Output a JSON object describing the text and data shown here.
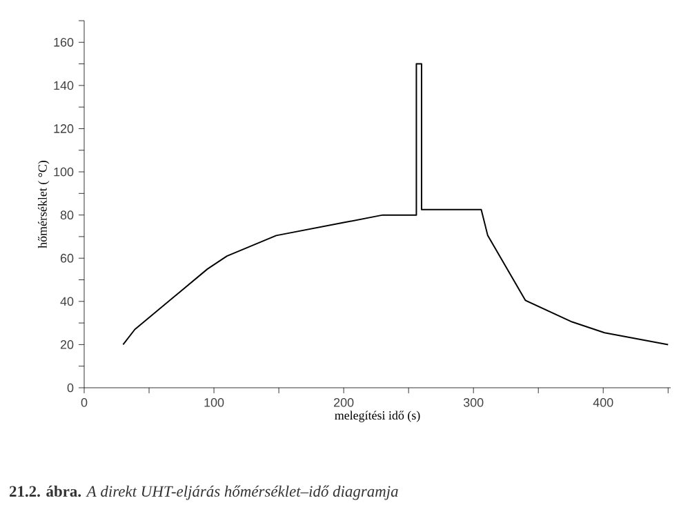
{
  "chart_data": {
    "type": "line",
    "title": "**21.2. ábra.** *A direkt UHT-eljárás hőmérséklet–idő diagramja*",
    "xlabel": "melegítési idő (s)",
    "ylabel": "hőmérséklet ( °C)",
    "x": [
      30,
      39,
      95,
      110,
      148,
      200,
      230,
      256,
      256,
      260,
      260,
      306,
      311,
      340,
      376,
      401,
      450
    ],
    "series": [
      {
        "color": "#000000",
        "values": [
          20,
          27,
          55,
          61,
          70.5,
          76.5,
          80,
          80,
          150,
          150,
          82.5,
          82.5,
          70.5,
          40.5,
          30.5,
          25.5,
          20
        ]
      }
    ],
    "xlim": [
      0,
      452
    ],
    "ylim": [
      0,
      170
    ],
    "xticks": [
      0,
      {
        "value": 50,
        "label": null
      },
      100,
      {
        "value": 150,
        "label": null
      },
      200,
      {
        "value": 250,
        "label": null
      },
      300,
      {
        "value": 350,
        "label": null
      },
      400,
      {
        "value": 450,
        "label": null
      }
    ],
    "yticks": [
      0,
      {
        "value": 10,
        "label": null
      },
      20,
      {
        "value": 30,
        "label": null
      },
      40,
      {
        "value": 50,
        "label": null
      },
      60,
      {
        "value": 70,
        "label": null
      },
      80,
      {
        "value": 90,
        "label": null
      },
      100,
      {
        "value": 110,
        "label": null
      },
      120,
      {
        "value": 130,
        "label": null
      },
      140,
      {
        "value": 150,
        "label": null
      },
      160,
      {
        "value": 170,
        "label": null
      }
    ],
    "grid": false,
    "marker": "none",
    "line_style": "solid"
  }
}
